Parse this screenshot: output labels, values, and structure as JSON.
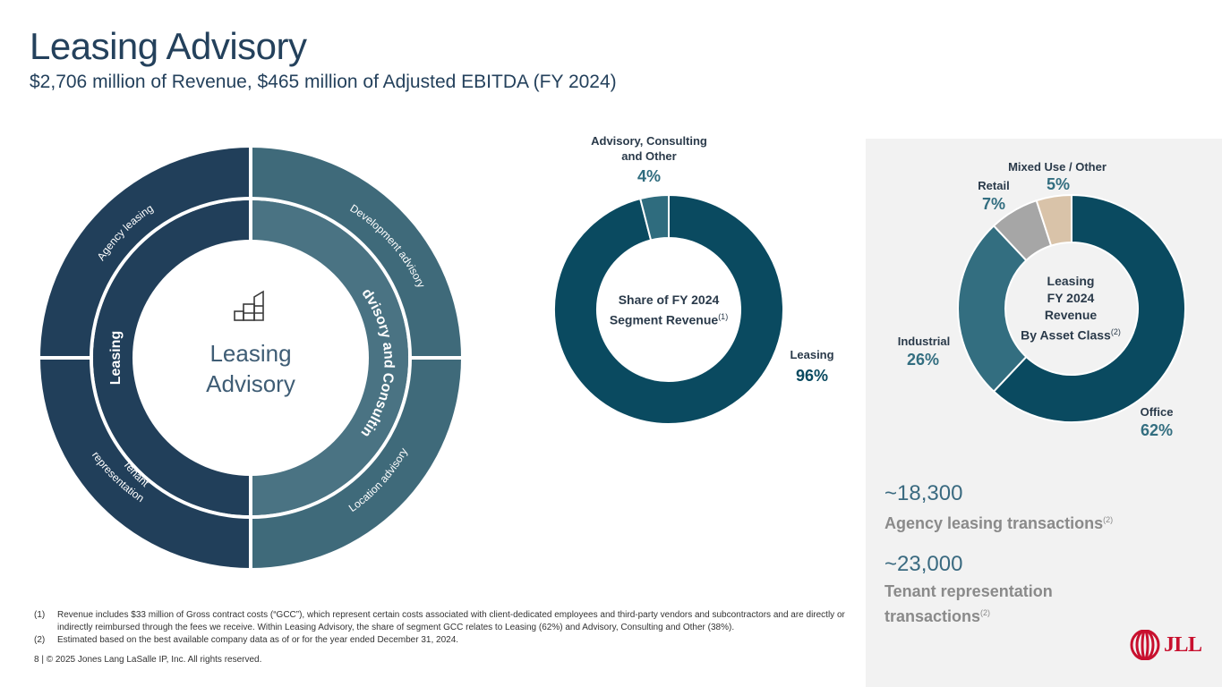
{
  "title": "Leasing Advisory",
  "subtitle": "$2,706 million of Revenue, $465 million of Adjusted EBITDA (FY 2024)",
  "wheel": {
    "center_line1": "Leasing",
    "center_line2": "Advisory",
    "inner_left": "Leasing",
    "inner_right": "Advisory and Consulting",
    "outer_tl": "Agency leasing",
    "outer_tr": "Development  advisory",
    "outer_bl_line1": "Tenant",
    "outer_bl_line2": "representation",
    "outer_br": "Location advisory",
    "colors": {
      "dark": "#213f5a",
      "teal": "#3f6a7a",
      "teal_inner": "#4a7383"
    }
  },
  "chart_data": [
    {
      "type": "pie",
      "title": "Share of FY 2024 Segment Revenue",
      "title_line1": "Share of FY 2024",
      "title_line2": "Segment Revenue",
      "footnote_ref": "(1)",
      "categories": [
        "Leasing",
        "Advisory, Consulting and Other"
      ],
      "labels": [
        "Leasing",
        "Advisory, Consulting",
        "and Other"
      ],
      "values": [
        96,
        4
      ],
      "value_labels": [
        "96%",
        "4%"
      ],
      "colors": [
        "#0a4a60",
        "#2f6c7e"
      ]
    },
    {
      "type": "pie",
      "title": "Leasing FY 2024 Revenue By Asset Class",
      "title_lines": [
        "Leasing",
        "FY 2024",
        "Revenue",
        "By Asset Class"
      ],
      "footnote_ref": "(2)",
      "categories": [
        "Office",
        "Industrial",
        "Retail",
        "Mixed Use / Other"
      ],
      "values": [
        62,
        26,
        7,
        5
      ],
      "value_labels": [
        "62%",
        "26%",
        "7%",
        "5%"
      ],
      "colors": [
        "#0a4a60",
        "#336e80",
        "#a6a6a6",
        "#d9c3a9"
      ]
    }
  ],
  "stats": [
    {
      "value": "~18,300",
      "label": "Agency leasing transactions",
      "ref": "(2)"
    },
    {
      "value": "~23,000",
      "label_line1": "Tenant representation",
      "label_line2": "transactions",
      "ref": "(2)"
    }
  ],
  "notes": [
    {
      "num": "(1)",
      "text": "Revenue includes $33 million of Gross contract costs (“GCC”), which represent certain costs associated with client-dedicated employees and third-party vendors and subcontractors and are directly or indirectly reimbursed through the fees we receive. Within Leasing Advisory, the share of  segment GCC relates to Leasing (62%) and Advisory, Consulting and Other (38%)."
    },
    {
      "num": "(2)",
      "text": "Estimated based on the best available company data as of or for the year ended December 31, 2024."
    }
  ],
  "footer": "8  |  © 2025 Jones Lang LaSalle IP, Inc. All rights reserved.",
  "logo_text": "JLL"
}
